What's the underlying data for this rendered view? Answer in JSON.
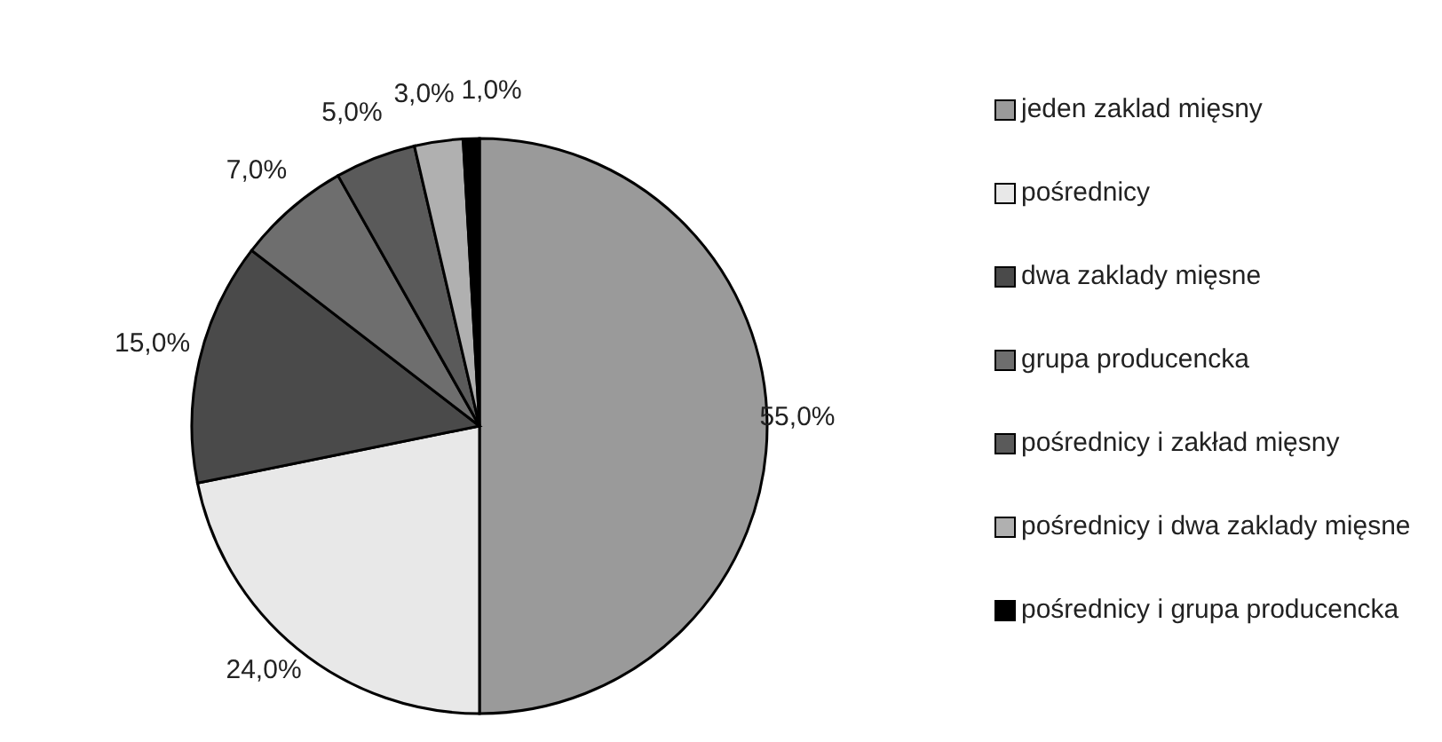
{
  "chart_data": {
    "type": "pie",
    "categories": [
      "jeden zaklad mięsny",
      "pośrednicy",
      "dwa zaklady mięsne",
      "grupa producencka",
      "pośrednicy i zakład mięsny",
      "pośrednicy i dwa zaklady mięsne",
      "pośrednicy i grupa producencka"
    ],
    "values": [
      55,
      24,
      15,
      7,
      5,
      3,
      1
    ],
    "value_labels": [
      "55,0%",
      "24,0%",
      "15,0%",
      "7,0%",
      "5,0%",
      "3,0%",
      "1,0%"
    ],
    "colors": [
      "#9a9a9a",
      "#e8e8e8",
      "#4a4a4a",
      "#6e6e6e",
      "#5a5a5a",
      "#b0b0b0",
      "#000000"
    ],
    "legend": "right"
  }
}
